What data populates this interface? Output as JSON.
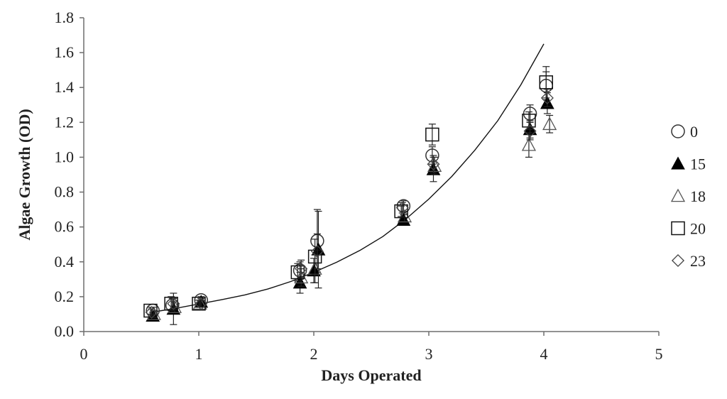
{
  "chart_data": {
    "type": "scatter",
    "title": "",
    "xlabel": "Days Operated",
    "ylabel": "Algae Growth (OD)",
    "xlim": [
      0,
      5
    ],
    "ylim": [
      0,
      1.8
    ],
    "xticks": [
      "0",
      "1",
      "2",
      "3",
      "4",
      "5"
    ],
    "yticks": [
      "0.0",
      "0.2",
      "0.4",
      "0.6",
      "0.8",
      "1.0",
      "1.2",
      "1.4",
      "1.6",
      "1.8"
    ],
    "grid": false,
    "legend_position": "right",
    "series": [
      {
        "name": "0",
        "marker": "circle-open",
        "points": [
          {
            "x": 0.6,
            "y": 0.12,
            "err": 0.02
          },
          {
            "x": 0.77,
            "y": 0.15,
            "err": 0.04
          },
          {
            "x": 1.02,
            "y": 0.18,
            "err": 0.02
          },
          {
            "x": 1.88,
            "y": 0.35,
            "err": 0.05
          },
          {
            "x": 2.03,
            "y": 0.52,
            "err": 0.18
          },
          {
            "x": 2.78,
            "y": 0.72,
            "err": 0.03
          },
          {
            "x": 3.03,
            "y": 1.01,
            "err": 0.05
          },
          {
            "x": 3.88,
            "y": 1.25,
            "err": 0.05
          },
          {
            "x": 4.02,
            "y": 1.41,
            "err": 0.08
          }
        ]
      },
      {
        "name": "15",
        "marker": "triangle-filled",
        "points": [
          {
            "x": 0.6,
            "y": 0.09,
            "err": 0.02
          },
          {
            "x": 0.78,
            "y": 0.13,
            "err": 0.09
          },
          {
            "x": 1.02,
            "y": 0.17,
            "err": 0.02
          },
          {
            "x": 1.88,
            "y": 0.28,
            "err": 0.06
          },
          {
            "x": 2.0,
            "y": 0.35,
            "err": 0.07
          },
          {
            "x": 2.04,
            "y": 0.47,
            "err": 0.22
          },
          {
            "x": 2.78,
            "y": 0.64,
            "err": 0.03
          },
          {
            "x": 3.04,
            "y": 0.93,
            "err": 0.07
          },
          {
            "x": 3.88,
            "y": 1.16,
            "err": 0.05
          },
          {
            "x": 4.03,
            "y": 1.31,
            "err": 0.06
          }
        ]
      },
      {
        "name": "18",
        "marker": "triangle-open",
        "points": [
          {
            "x": 0.61,
            "y": 0.1,
            "err": 0.02
          },
          {
            "x": 0.79,
            "y": 0.14,
            "err": 0.03
          },
          {
            "x": 1.01,
            "y": 0.16,
            "err": 0.02
          },
          {
            "x": 1.89,
            "y": 0.31,
            "err": 0.05
          },
          {
            "x": 2.01,
            "y": 0.36,
            "err": 0.08
          },
          {
            "x": 2.79,
            "y": 0.66,
            "err": 0.03
          },
          {
            "x": 3.05,
            "y": 0.95,
            "err": 0.05
          },
          {
            "x": 3.87,
            "y": 1.07,
            "err": 0.07
          },
          {
            "x": 4.05,
            "y": 1.19,
            "err": 0.05
          }
        ]
      },
      {
        "name": "20",
        "marker": "square-open",
        "points": [
          {
            "x": 0.58,
            "y": 0.12,
            "err": 0.02
          },
          {
            "x": 0.76,
            "y": 0.16,
            "err": 0.04
          },
          {
            "x": 1.0,
            "y": 0.16,
            "err": 0.02
          },
          {
            "x": 1.86,
            "y": 0.34,
            "err": 0.05
          },
          {
            "x": 2.01,
            "y": 0.43,
            "err": 0.1
          },
          {
            "x": 2.76,
            "y": 0.69,
            "err": 0.03
          },
          {
            "x": 3.03,
            "y": 1.13,
            "err": 0.06
          },
          {
            "x": 3.87,
            "y": 1.21,
            "err": 0.05
          },
          {
            "x": 4.02,
            "y": 1.43,
            "err": 0.09
          }
        ]
      },
      {
        "name": "23",
        "marker": "diamond-open",
        "points": [
          {
            "x": 0.59,
            "y": 0.11,
            "err": 0.02
          },
          {
            "x": 0.78,
            "y": 0.16,
            "err": 0.03
          },
          {
            "x": 1.02,
            "y": 0.16,
            "err": 0.02
          },
          {
            "x": 1.89,
            "y": 0.36,
            "err": 0.05
          },
          {
            "x": 2.03,
            "y": 0.46,
            "err": 0.1
          },
          {
            "x": 2.77,
            "y": 0.71,
            "err": 0.03
          },
          {
            "x": 3.04,
            "y": 0.96,
            "err": 0.05
          },
          {
            "x": 3.88,
            "y": 1.15,
            "err": 0.05
          },
          {
            "x": 4.03,
            "y": 1.34,
            "err": 0.05
          }
        ]
      }
    ],
    "trendline": {
      "type": "exponential",
      "points": [
        [
          0.6,
          0.112
        ],
        [
          0.8,
          0.133
        ],
        [
          1.0,
          0.158
        ],
        [
          1.2,
          0.183
        ],
        [
          1.4,
          0.21
        ],
        [
          1.6,
          0.244
        ],
        [
          1.8,
          0.287
        ],
        [
          2.0,
          0.34
        ],
        [
          2.2,
          0.398
        ],
        [
          2.4,
          0.465
        ],
        [
          2.6,
          0.545
        ],
        [
          2.8,
          0.645
        ],
        [
          3.0,
          0.76
        ],
        [
          3.2,
          0.89
        ],
        [
          3.4,
          1.04
        ],
        [
          3.6,
          1.21
        ],
        [
          3.8,
          1.415
        ],
        [
          4.0,
          1.65
        ]
      ]
    }
  }
}
